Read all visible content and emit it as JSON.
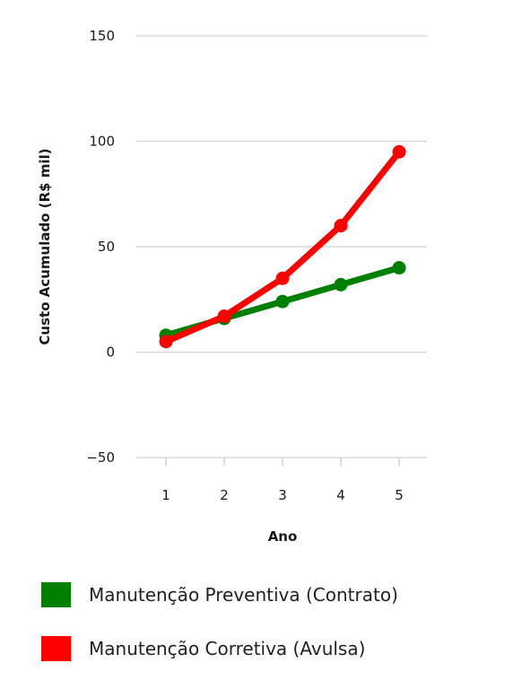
{
  "chart_data": {
    "type": "line",
    "x": [
      1,
      2,
      3,
      4,
      5
    ],
    "xlabel": "Ano",
    "ylabel": "Custo Acumulado (R$ mil)",
    "ylim": [
      -50,
      150
    ],
    "yticks": [
      "150",
      "100",
      "50",
      "0",
      "−50"
    ],
    "xticks": [
      "1",
      "2",
      "3",
      "4",
      "5"
    ],
    "grid": true,
    "legend_position": "bottom",
    "series": [
      {
        "name": "Manutenção Preventiva (Contrato)",
        "color": "#008000",
        "values": [
          8,
          16,
          24,
          32,
          40
        ]
      },
      {
        "name": "Manutenção Corretiva (Avulsa)",
        "color": "#ff0000",
        "values": [
          5,
          17,
          35,
          60,
          95
        ]
      }
    ]
  }
}
